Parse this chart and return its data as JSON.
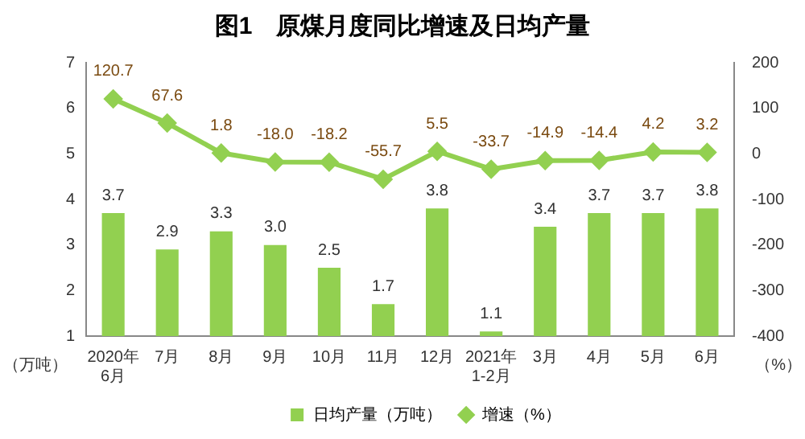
{
  "chart_data": {
    "type": "bar",
    "title": "图1　原煤月度同比增速及日均产量",
    "ylabel": "（万吨）",
    "y2label": "（%）",
    "categories": [
      "2020年\n6月",
      "7月",
      "8月",
      "9月",
      "10月",
      "11月",
      "12月",
      "2021年\n1-2月",
      "3月",
      "4月",
      "5月",
      "6月"
    ],
    "series": [
      {
        "name": "日均产量（万吨）",
        "color": "#92d050",
        "values": [
          3.7,
          2.9,
          3.3,
          3.0,
          2.5,
          1.7,
          3.8,
          1.1,
          3.4,
          3.7,
          3.7,
          3.8
        ],
        "value_labels": [
          "3.7",
          "2.9",
          "3.3",
          "3.0",
          "2.5",
          "1.7",
          "3.8",
          "1.1",
          "3.4",
          "3.7",
          "3.7",
          "3.8"
        ]
      },
      {
        "name": "增速（%）",
        "type": "line",
        "axis": "y2",
        "color": "#92d050",
        "marker": "diamond",
        "values": [
          120.7,
          67.6,
          1.8,
          -18.0,
          -18.2,
          -55.7,
          5.5,
          -33.7,
          -14.9,
          -14.4,
          4.2,
          3.2
        ],
        "value_labels": [
          "120.7",
          "67.6",
          "1.8",
          "-18.0",
          "-18.2",
          "-55.7",
          "5.5",
          "-33.7",
          "-14.9",
          "-14.4",
          "4.2",
          "3.2"
        ]
      }
    ],
    "ylim": [
      1,
      7
    ],
    "yticks": [
      1,
      2,
      3,
      4,
      5,
      6,
      7
    ],
    "y2lim": [
      -400,
      200
    ],
    "y2ticks": [
      -400,
      -300,
      -200,
      -100,
      0,
      100,
      200
    ],
    "legend": "bottom",
    "grid": false
  }
}
